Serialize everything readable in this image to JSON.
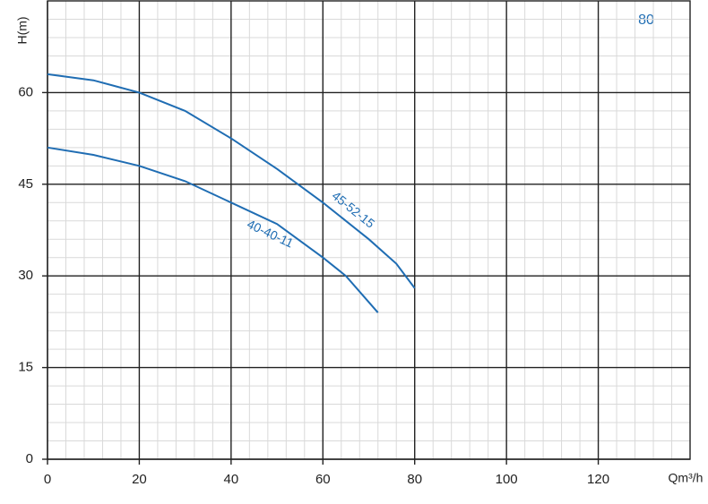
{
  "chart_data": {
    "type": "line",
    "annotation": "80",
    "xlabel": "Qm³/h",
    "ylabel": "H(m)",
    "xlim": [
      0,
      140
    ],
    "xticks": [
      0,
      20,
      40,
      60,
      80,
      100,
      120
    ],
    "ylim": [
      0,
      75
    ],
    "yticks": [
      0,
      15,
      30,
      45,
      60
    ],
    "grid": true,
    "series": [
      {
        "name": "45-52-15",
        "color": "#1f6db3",
        "x": [
          0,
          10,
          20,
          30,
          40,
          50,
          60,
          70,
          76,
          80
        ],
        "values": [
          63,
          62,
          60,
          57,
          52.5,
          47.5,
          42,
          36,
          32,
          28
        ]
      },
      {
        "name": "40-40-11",
        "color": "#1f6db3",
        "x": [
          0,
          10,
          20,
          30,
          40,
          50,
          60,
          65,
          72
        ],
        "values": [
          51,
          49.8,
          48,
          45.5,
          42,
          38.5,
          33,
          30,
          24
        ]
      }
    ]
  }
}
